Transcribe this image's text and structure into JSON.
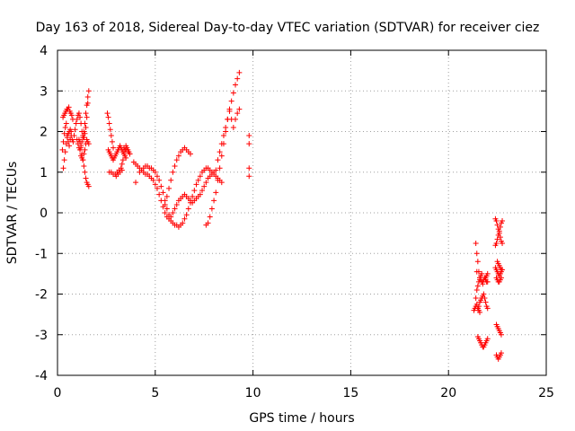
{
  "chart_data": {
    "type": "scatter",
    "title": "Day 163 of 2018, Sidereal Day-to-day VTEC variation (SDTVAR) for receiver ciez",
    "xlabel": "GPS time / hours",
    "ylabel": "SDTVAR / TECUs",
    "xlim": [
      0,
      25
    ],
    "ylim": [
      -4,
      4
    ],
    "xticks": [
      0,
      5,
      10,
      15,
      20,
      25
    ],
    "yticks": [
      -4,
      -3,
      -2,
      -1,
      0,
      1,
      2,
      3,
      4
    ],
    "grid": true,
    "marker": "+",
    "marker_color": "#ff0000",
    "series": [
      {
        "name": "SDTVAR",
        "x": [
          0.25,
          0.3,
          0.35,
          0.4,
          0.45,
          0.5,
          0.55,
          0.6,
          0.65,
          0.7,
          0.28,
          0.33,
          0.38,
          0.43,
          0.48,
          0.53,
          0.58,
          0.63,
          0.68,
          0.73,
          0.78,
          0.3,
          0.35,
          0.4,
          0.45,
          0.5,
          0.55,
          0.6,
          0.65,
          0.7,
          0.75,
          0.8,
          0.85,
          0.9,
          0.95,
          1.0,
          1.05,
          1.1,
          1.15,
          1.2,
          1.25,
          1.3,
          1.35,
          1.4,
          1.45,
          1.5,
          1.55,
          1.0,
          1.05,
          1.1,
          1.15,
          1.2,
          1.25,
          1.3,
          1.35,
          1.4,
          1.45,
          1.5,
          1.55,
          1.6,
          1.1,
          1.15,
          1.2,
          1.25,
          1.3,
          1.35,
          1.4,
          1.45,
          1.5,
          1.55,
          1.6,
          1.2,
          1.25,
          1.3,
          1.35,
          1.4,
          1.45,
          1.5,
          1.55,
          1.6,
          2.55,
          2.6,
          2.65,
          2.7,
          2.75,
          2.8,
          2.85,
          2.6,
          2.65,
          2.7,
          2.75,
          2.8,
          2.85,
          2.9,
          2.95,
          3.0,
          3.05,
          3.1,
          3.15,
          3.2,
          3.25,
          3.3,
          3.35,
          3.4,
          3.45,
          3.5,
          2.65,
          2.75,
          2.85,
          2.95,
          3.05,
          3.15,
          3.25,
          3.3,
          3.35,
          3.4,
          3.45,
          3.5,
          3.55,
          3.6,
          3.65,
          3.7,
          3.4,
          3.5,
          3.6,
          3.7,
          3.0,
          3.1,
          3.2,
          3.3,
          3.9,
          4.0,
          4.1,
          4.2,
          4.3,
          4.4,
          4.5,
          4.6,
          4.7,
          4.8,
          4.9,
          5.0,
          5.1,
          5.2,
          5.3,
          5.4,
          5.5,
          5.6,
          5.7,
          5.8,
          5.9,
          6.0,
          6.1,
          6.2,
          6.3,
          6.4,
          6.5,
          6.6,
          6.7,
          6.8,
          6.9,
          7.0,
          7.1,
          7.2,
          7.3,
          7.4,
          7.5,
          7.6,
          7.7,
          7.8,
          7.9,
          8.0,
          8.1,
          8.2,
          8.3,
          8.4,
          4.2,
          4.3,
          4.4,
          4.5,
          4.6,
          4.7,
          4.8,
          4.9,
          5.0,
          5.1,
          5.2,
          5.3,
          5.4,
          5.5,
          5.6,
          5.7,
          5.8,
          5.9,
          6.0,
          6.1,
          6.2,
          6.3,
          6.4,
          6.5,
          6.6,
          6.7,
          6.8,
          6.9,
          7.0,
          7.1,
          7.2,
          7.3,
          7.4,
          7.5,
          7.6,
          7.7,
          7.8,
          7.9,
          8.0,
          8.1,
          5.5,
          5.6,
          5.7,
          5.8,
          5.9,
          6.0,
          6.1,
          6.2,
          6.3,
          6.4,
          6.5,
          6.6,
          6.7,
          6.8,
          7.6,
          7.7,
          7.8,
          7.9,
          8.0,
          8.1,
          8.2,
          8.3,
          8.4,
          8.5,
          8.6,
          8.7,
          8.8,
          8.9,
          9.0,
          9.1,
          9.2,
          9.3,
          8.2,
          8.3,
          8.4,
          8.5,
          8.6,
          8.7,
          8.8,
          8.9,
          9.0,
          9.1,
          9.2,
          9.3,
          4.0,
          9.8,
          9.8,
          9.8,
          9.8,
          21.4,
          21.45,
          21.5,
          21.55,
          21.6,
          21.65,
          21.7,
          21.75,
          21.8,
          21.85,
          21.9,
          21.95,
          22.0,
          21.4,
          21.45,
          21.5,
          21.55,
          21.6,
          21.65,
          21.7,
          21.75,
          21.8,
          21.85,
          21.9,
          21.95,
          22.0,
          21.5,
          21.55,
          21.6,
          21.65,
          21.7,
          21.75,
          21.8,
          21.85,
          21.9,
          21.95,
          22.0,
          21.3,
          21.35,
          21.4,
          21.45,
          21.5,
          21.55,
          21.6,
          21.65,
          21.7,
          21.45,
          21.6,
          21.75,
          21.9,
          21.95,
          22.0,
          21.6,
          21.55,
          21.5,
          22.4,
          22.45,
          22.5,
          22.55,
          22.6,
          22.65,
          22.7,
          22.75,
          22.4,
          22.45,
          22.5,
          22.55,
          22.6,
          22.65,
          22.7,
          22.75,
          22.4,
          22.45,
          22.5,
          22.55,
          22.6,
          22.65,
          22.7,
          22.75,
          22.45,
          22.5,
          22.55,
          22.6,
          22.65,
          22.7,
          22.45,
          22.5,
          22.55,
          22.6,
          22.65,
          22.7,
          22.45,
          22.5,
          22.55,
          22.6,
          22.65,
          22.7,
          22.5,
          22.55,
          22.6,
          22.65,
          22.7
        ],
        "y": [
          1.55,
          1.75,
          1.95,
          2.1,
          2.2,
          1.9,
          1.75,
          1.65,
          1.8,
          2.0,
          2.35,
          2.4,
          2.45,
          2.5,
          2.55,
          2.55,
          2.6,
          2.5,
          2.45,
          2.4,
          2.3,
          1.1,
          1.3,
          1.5,
          1.7,
          1.85,
          1.95,
          2.0,
          2.05,
          1.9,
          1.8,
          1.75,
          1.9,
          2.05,
          2.2,
          2.3,
          2.4,
          2.45,
          2.35,
          2.2,
          2.0,
          1.9,
          1.85,
          1.95,
          2.1,
          2.35,
          2.7,
          1.8,
          1.7,
          1.6,
          1.55,
          1.65,
          1.75,
          1.85,
          2.0,
          2.2,
          2.45,
          2.65,
          2.85,
          3.0,
          1.8,
          1.75,
          1.6,
          1.45,
          1.3,
          1.15,
          1.0,
          0.85,
          0.75,
          0.7,
          0.65,
          1.4,
          1.35,
          1.3,
          1.45,
          1.55,
          1.7,
          1.8,
          1.75,
          1.7,
          2.45,
          2.35,
          2.2,
          2.05,
          1.9,
          1.75,
          1.6,
          1.55,
          1.5,
          1.45,
          1.4,
          1.35,
          1.3,
          1.35,
          1.4,
          1.45,
          1.5,
          1.55,
          1.6,
          1.65,
          1.6,
          1.55,
          1.5,
          1.45,
          1.4,
          1.35,
          1.0,
          1.0,
          0.95,
          0.95,
          1.0,
          1.05,
          1.1,
          1.2,
          1.3,
          1.45,
          1.55,
          1.65,
          1.6,
          1.55,
          1.5,
          1.45,
          1.6,
          1.55,
          1.5,
          1.45,
          0.9,
          0.95,
          1.0,
          1.05,
          1.25,
          1.2,
          1.15,
          1.1,
          1.05,
          1.0,
          0.95,
          0.95,
          0.9,
          0.85,
          0.8,
          0.7,
          0.6,
          0.45,
          0.3,
          0.15,
          0.0,
          -0.1,
          -0.15,
          -0.2,
          -0.25,
          -0.3,
          -0.3,
          -0.35,
          -0.3,
          -0.25,
          -0.15,
          -0.05,
          0.1,
          0.25,
          0.4,
          0.55,
          0.7,
          0.8,
          0.9,
          1.0,
          1.05,
          1.1,
          1.1,
          1.05,
          1.0,
          0.95,
          0.9,
          0.85,
          0.8,
          0.75,
          1.0,
          1.05,
          1.1,
          1.15,
          1.15,
          1.1,
          1.1,
          1.05,
          1.0,
          0.9,
          0.8,
          0.65,
          0.5,
          0.3,
          0.1,
          -0.05,
          -0.1,
          0.0,
          0.1,
          0.2,
          0.3,
          0.35,
          0.4,
          0.45,
          0.4,
          0.35,
          0.3,
          0.25,
          0.3,
          0.35,
          0.4,
          0.45,
          0.55,
          0.65,
          0.75,
          0.85,
          0.9,
          0.95,
          1.0,
          1.05,
          0.2,
          0.4,
          0.6,
          0.8,
          1.0,
          1.15,
          1.3,
          1.4,
          1.5,
          1.55,
          1.6,
          1.55,
          1.5,
          1.45,
          -0.3,
          -0.25,
          -0.1,
          0.1,
          0.3,
          0.5,
          0.8,
          1.1,
          1.4,
          1.7,
          2.0,
          2.3,
          2.55,
          2.75,
          2.95,
          3.15,
          3.3,
          3.45,
          1.3,
          1.5,
          1.7,
          1.9,
          2.1,
          2.3,
          2.5,
          2.3,
          2.1,
          2.3,
          2.45,
          2.55,
          0.75,
          1.9,
          1.7,
          1.1,
          0.9,
          -0.75,
          -1.0,
          -1.2,
          -1.45,
          -1.6,
          -1.65,
          -1.7,
          -1.7,
          -1.65,
          -1.6,
          -1.65,
          -1.7,
          -1.7,
          -2.1,
          -2.25,
          -2.35,
          -2.3,
          -2.2,
          -2.15,
          -2.1,
          -2.05,
          -2.0,
          -2.1,
          -2.2,
          -2.3,
          -2.35,
          -3.05,
          -3.1,
          -3.15,
          -3.2,
          -3.25,
          -3.3,
          -3.3,
          -3.25,
          -3.2,
          -3.15,
          -3.1,
          -2.4,
          -2.35,
          -2.3,
          -1.9,
          -1.8,
          -1.7,
          -1.6,
          -1.55,
          -1.5,
          -1.45,
          -1.65,
          -1.75,
          -1.6,
          -1.55,
          -1.5,
          -2.45,
          -2.4,
          -2.35,
          -0.15,
          -0.2,
          -0.3,
          -0.4,
          -0.5,
          -0.6,
          -0.7,
          -0.75,
          -0.8,
          -0.75,
          -0.65,
          -0.55,
          -0.45,
          -0.35,
          -0.25,
          -0.2,
          -1.35,
          -1.4,
          -1.45,
          -1.5,
          -1.55,
          -1.5,
          -1.45,
          -1.4,
          -1.6,
          -1.65,
          -1.7,
          -1.7,
          -1.65,
          -1.6,
          -2.75,
          -2.8,
          -2.85,
          -2.9,
          -2.95,
          -3.0,
          -3.5,
          -3.55,
          -3.6,
          -3.55,
          -3.5,
          -3.45,
          -1.2,
          -1.25,
          -1.3,
          -1.35,
          -1.4
        ]
      }
    ]
  }
}
